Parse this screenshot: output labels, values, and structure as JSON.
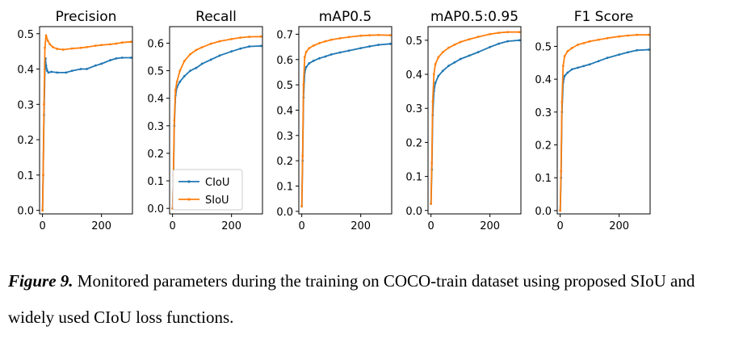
{
  "colors": {
    "CIoU": "#1f77b4",
    "SIoU": "#ff7f0e"
  },
  "caption": {
    "label": "Figure 9.",
    "text": " Monitored parameters during the training on COCO-train dataset using proposed SIoU and widely used CIoU loss functions."
  },
  "chart_data": [
    {
      "type": "line",
      "title": "Precision",
      "xlim": [
        -10,
        305
      ],
      "ylim": [
        -0.01,
        0.52
      ],
      "xticks": [
        0,
        200
      ],
      "yticks": [
        0.0,
        0.1,
        0.2,
        0.3,
        0.4,
        0.5
      ],
      "ytick_labels": [
        "0.0",
        "0.1",
        "0.2",
        "0.3",
        "0.4",
        "0.5"
      ],
      "grid": false,
      "legend": null,
      "series": [
        {
          "name": "CIoU",
          "x": [
            0,
            2,
            5,
            8,
            10,
            12,
            16,
            20,
            30,
            50,
            80,
            100,
            130,
            150,
            180,
            200,
            230,
            250,
            270,
            300
          ],
          "y": [
            0.0,
            0.1,
            0.27,
            0.4,
            0.43,
            0.41,
            0.395,
            0.39,
            0.392,
            0.39,
            0.39,
            0.395,
            0.4,
            0.4,
            0.41,
            0.415,
            0.425,
            0.43,
            0.432,
            0.432
          ]
        },
        {
          "name": "SIoU",
          "x": [
            0,
            2,
            5,
            8,
            12,
            18,
            25,
            35,
            50,
            70,
            100,
            130,
            150,
            180,
            200,
            230,
            250,
            270,
            300
          ],
          "y": [
            0.0,
            0.1,
            0.3,
            0.46,
            0.495,
            0.48,
            0.47,
            0.462,
            0.457,
            0.455,
            0.458,
            0.46,
            0.462,
            0.466,
            0.468,
            0.47,
            0.472,
            0.475,
            0.477
          ]
        }
      ]
    },
    {
      "type": "line",
      "title": "Recall",
      "xlim": [
        -10,
        305
      ],
      "ylim": [
        -0.02,
        0.66
      ],
      "xticks": [
        0,
        200
      ],
      "yticks": [
        0.0,
        0.1,
        0.2,
        0.3,
        0.4,
        0.5,
        0.6
      ],
      "ytick_labels": [
        "0.0",
        "0.1",
        "0.2",
        "0.3",
        "0.4",
        "0.5",
        "0.6"
      ],
      "grid": false,
      "legend": "lower-left",
      "series": [
        {
          "name": "CIoU",
          "x": [
            0,
            3,
            6,
            10,
            15,
            25,
            40,
            60,
            80,
            100,
            130,
            160,
            200,
            230,
            260,
            300
          ],
          "y": [
            0.0,
            0.1,
            0.3,
            0.41,
            0.44,
            0.46,
            0.48,
            0.5,
            0.51,
            0.525,
            0.54,
            0.555,
            0.57,
            0.58,
            0.588,
            0.59
          ]
        },
        {
          "name": "SIoU",
          "x": [
            0,
            3,
            6,
            10,
            15,
            25,
            40,
            60,
            80,
            100,
            130,
            160,
            200,
            230,
            260,
            300
          ],
          "y": [
            0.0,
            0.12,
            0.32,
            0.43,
            0.46,
            0.5,
            0.535,
            0.56,
            0.575,
            0.585,
            0.598,
            0.607,
            0.615,
            0.62,
            0.623,
            0.624
          ]
        }
      ]
    },
    {
      "type": "line",
      "title": "mAP0.5",
      "xlim": [
        -10,
        305
      ],
      "ylim": [
        -0.01,
        0.73
      ],
      "xticks": [
        0,
        200
      ],
      "yticks": [
        0.0,
        0.1,
        0.2,
        0.3,
        0.4,
        0.5,
        0.6,
        0.7
      ],
      "ytick_labels": [
        "0.0",
        "0.1",
        "0.2",
        "0.3",
        "0.4",
        "0.5",
        "0.6",
        "0.7"
      ],
      "grid": false,
      "legend": null,
      "series": [
        {
          "name": "CIoU",
          "x": [
            0,
            3,
            6,
            10,
            15,
            25,
            40,
            60,
            80,
            100,
            130,
            160,
            200,
            230,
            260,
            300
          ],
          "y": [
            0.02,
            0.2,
            0.45,
            0.55,
            0.57,
            0.585,
            0.595,
            0.605,
            0.612,
            0.62,
            0.628,
            0.635,
            0.645,
            0.652,
            0.658,
            0.662
          ]
        },
        {
          "name": "SIoU",
          "x": [
            0,
            3,
            6,
            10,
            15,
            25,
            40,
            60,
            80,
            100,
            130,
            160,
            200,
            230,
            260,
            300
          ],
          "y": [
            0.02,
            0.22,
            0.5,
            0.61,
            0.63,
            0.645,
            0.655,
            0.665,
            0.672,
            0.678,
            0.684,
            0.689,
            0.694,
            0.696,
            0.697,
            0.696
          ]
        }
      ]
    },
    {
      "type": "line",
      "title": "mAP0.5:0.95",
      "xlim": [
        -10,
        305
      ],
      "ylim": [
        -0.01,
        0.54
      ],
      "xticks": [
        0,
        200
      ],
      "yticks": [
        0.0,
        0.1,
        0.2,
        0.3,
        0.4,
        0.5
      ],
      "ytick_labels": [
        "0.0",
        "0.1",
        "0.2",
        "0.3",
        "0.4",
        "0.5"
      ],
      "grid": false,
      "legend": null,
      "series": [
        {
          "name": "CIoU",
          "x": [
            0,
            3,
            6,
            10,
            15,
            25,
            40,
            60,
            80,
            100,
            130,
            160,
            200,
            230,
            260,
            300
          ],
          "y": [
            0.02,
            0.12,
            0.28,
            0.35,
            0.375,
            0.395,
            0.41,
            0.425,
            0.435,
            0.445,
            0.455,
            0.465,
            0.48,
            0.49,
            0.497,
            0.5
          ]
        },
        {
          "name": "SIoU",
          "x": [
            0,
            3,
            6,
            10,
            15,
            25,
            40,
            60,
            80,
            100,
            130,
            160,
            200,
            230,
            260,
            300
          ],
          "y": [
            0.02,
            0.14,
            0.32,
            0.4,
            0.43,
            0.45,
            0.465,
            0.478,
            0.487,
            0.495,
            0.503,
            0.51,
            0.518,
            0.522,
            0.524,
            0.524
          ]
        }
      ]
    },
    {
      "type": "line",
      "title": "F1 Score",
      "xlim": [
        -10,
        305
      ],
      "ylim": [
        -0.01,
        0.56
      ],
      "xticks": [
        0,
        200
      ],
      "yticks": [
        0.0,
        0.1,
        0.2,
        0.3,
        0.4,
        0.5
      ],
      "ytick_labels": [
        "0.0",
        "0.1",
        "0.2",
        "0.3",
        "0.4",
        "0.5"
      ],
      "grid": false,
      "legend": null,
      "series": [
        {
          "name": "CIoU",
          "x": [
            0,
            3,
            6,
            10,
            15,
            25,
            40,
            60,
            80,
            100,
            130,
            160,
            200,
            230,
            260,
            300
          ],
          "y": [
            0.0,
            0.1,
            0.3,
            0.39,
            0.41,
            0.42,
            0.43,
            0.435,
            0.44,
            0.445,
            0.455,
            0.465,
            0.475,
            0.482,
            0.488,
            0.49
          ]
        },
        {
          "name": "SIoU",
          "x": [
            0,
            3,
            6,
            10,
            15,
            25,
            40,
            60,
            80,
            100,
            130,
            160,
            200,
            230,
            260,
            300
          ],
          "y": [
            0.0,
            0.12,
            0.33,
            0.44,
            0.47,
            0.485,
            0.495,
            0.505,
            0.51,
            0.515,
            0.52,
            0.525,
            0.53,
            0.533,
            0.535,
            0.535
          ]
        }
      ]
    }
  ]
}
